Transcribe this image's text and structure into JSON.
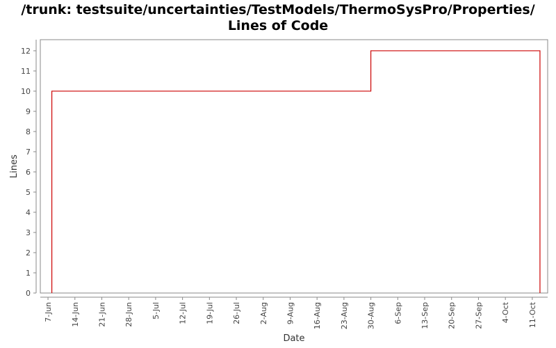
{
  "chart_data": {
    "type": "line",
    "title": [
      "/trunk: testsuite/uncertainties/TestModels/ThermoSysPro/Properties/",
      "Lines of Code"
    ],
    "x_label": "Date",
    "y_label": "Lines",
    "x": [
      159,
      159,
      242,
      242,
      286,
      286
    ],
    "series": [
      {
        "color": "#cc0000",
        "values": [
          0,
          10,
          10,
          12,
          12,
          0
        ]
      }
    ],
    "xlim": [
      156,
      288
    ],
    "xticks": [
      {
        "value": 158,
        "label": "7-Jun"
      },
      {
        "value": 165,
        "label": "14-Jun"
      },
      {
        "value": 172,
        "label": "21-Jun"
      },
      {
        "value": 179,
        "label": "28-Jun"
      },
      {
        "value": 186,
        "label": "5-Jul"
      },
      {
        "value": 193,
        "label": "12-Jul"
      },
      {
        "value": 200,
        "label": "19-Jul"
      },
      {
        "value": 207,
        "label": "26-Jul"
      },
      {
        "value": 214,
        "label": "2-Aug"
      },
      {
        "value": 221,
        "label": "9-Aug"
      },
      {
        "value": 228,
        "label": "16-Aug"
      },
      {
        "value": 235,
        "label": "23-Aug"
      },
      {
        "value": 242,
        "label": "30-Aug"
      },
      {
        "value": 249,
        "label": "6-Sep"
      },
      {
        "value": 256,
        "label": "13-Sep"
      },
      {
        "value": 263,
        "label": "20-Sep"
      },
      {
        "value": 270,
        "label": "27-Sep"
      },
      {
        "value": 277,
        "label": "4-Oct"
      },
      {
        "value": 284,
        "label": "11-Oct"
      }
    ],
    "ylim": [
      0,
      12.55
    ],
    "yticks": [
      0,
      1,
      2,
      3,
      4,
      5,
      6,
      7,
      8,
      9,
      10,
      11,
      12
    ],
    "grid": false
  }
}
